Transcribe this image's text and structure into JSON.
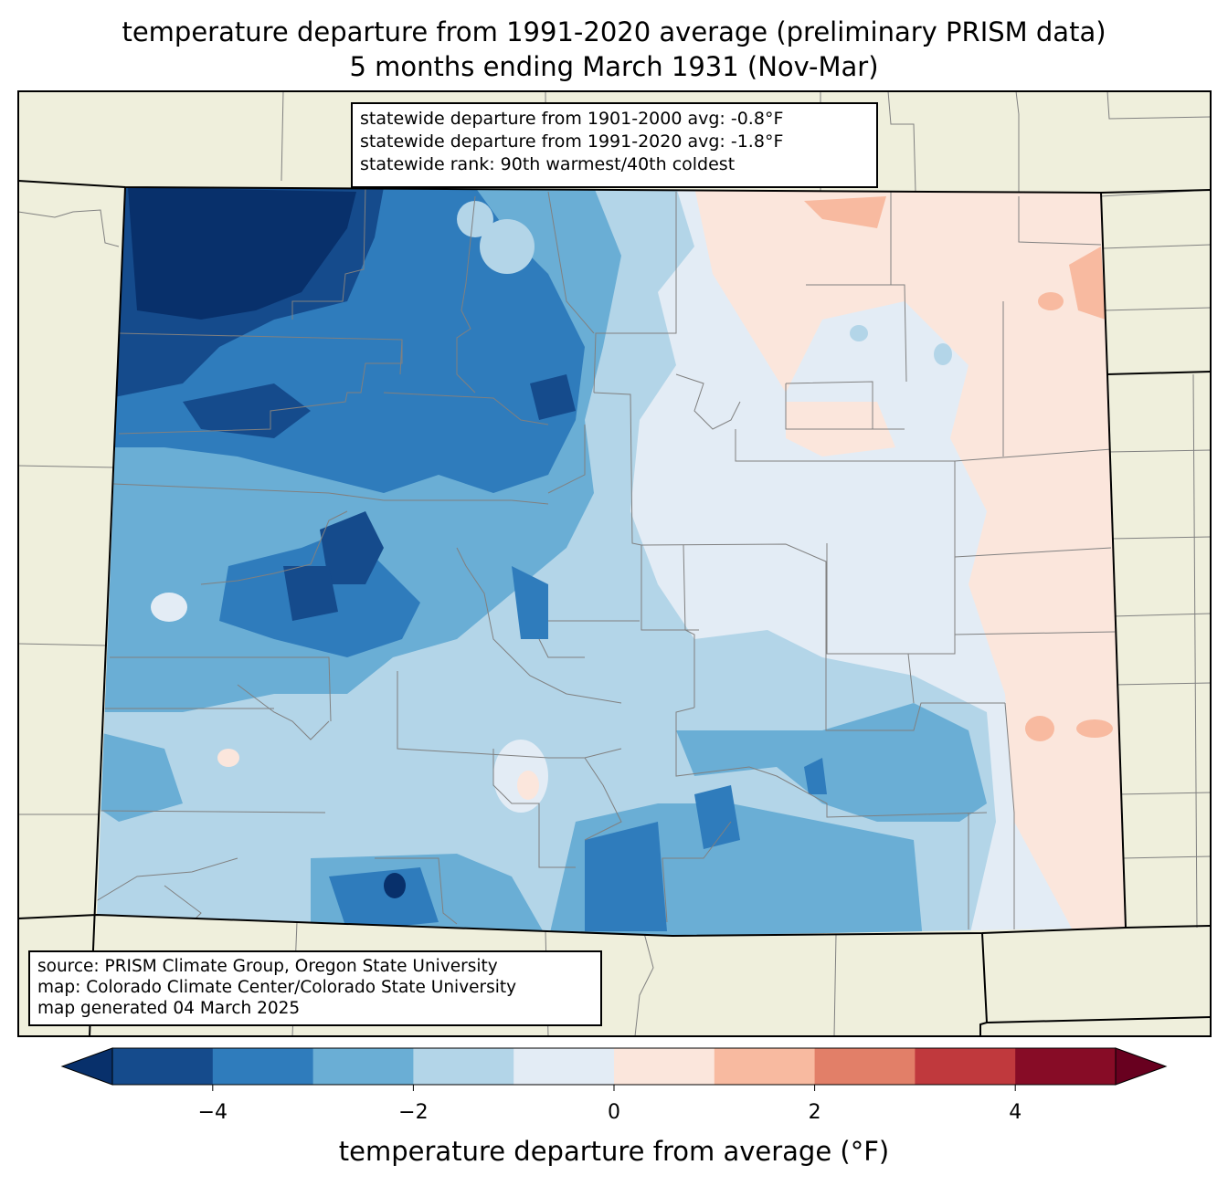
{
  "title": {
    "line1": "temperature departure from 1991-2020 average (preliminary PRISM data)",
    "line2": "5 months ending March 1931 (Nov-Mar)"
  },
  "stats": {
    "line1": "statewide departure from 1901-2000 avg: -0.8°F",
    "line2": "statewide departure from 1991-2020 avg: -1.8°F",
    "line3": "statewide rank: 90th warmest/40th coldest"
  },
  "source": {
    "line1": "source: PRISM Climate Group, Oregon State University",
    "line2": "map: Colorado Climate Center/Colorado State University",
    "line3": "map generated 04 March 2025"
  },
  "colorbar": {
    "label": "temperature departure from average (°F)",
    "ticks": [
      "−4",
      "−2",
      "0",
      "2",
      "4"
    ],
    "tick_values": [
      -4,
      -2,
      0,
      2,
      4
    ],
    "range": [
      -5,
      5
    ],
    "colors": [
      "#08306b",
      "#154b8c",
      "#2f7cbc",
      "#6aaed5",
      "#b3d5e8",
      "#e3ecf5",
      "#fbe6dc",
      "#f8baa0",
      "#e27f68",
      "#c0393d",
      "#870c26",
      "#68001f"
    ]
  },
  "colors": {
    "land": "#efefdc",
    "county_lines": "#808080",
    "state_lines": "#000000"
  }
}
